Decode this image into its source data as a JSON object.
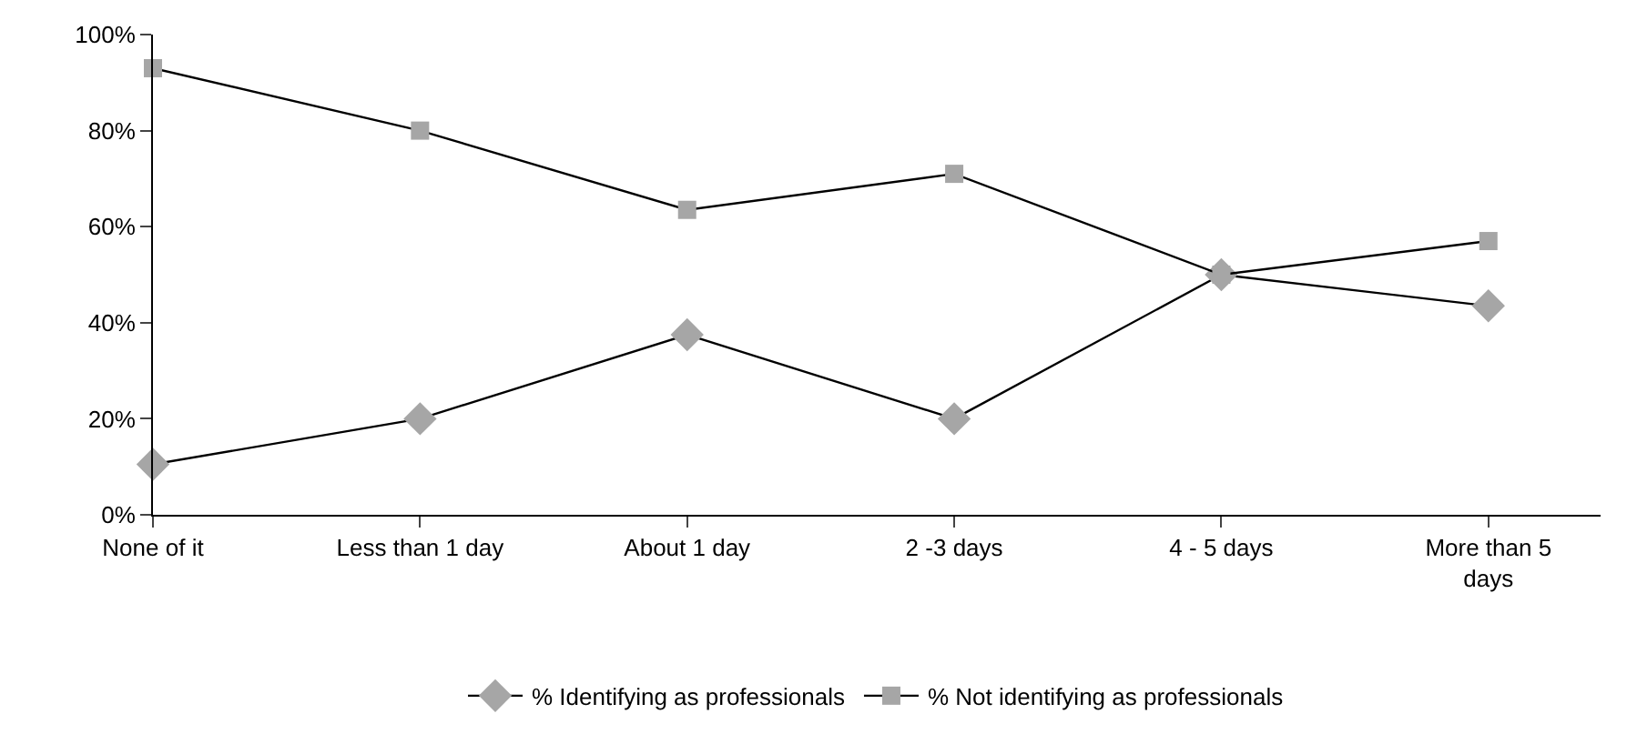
{
  "chart_data": {
    "type": "line",
    "categories": [
      "None of it",
      "Less than 1 day",
      "About 1 day",
      "2 -3 days",
      "4 - 5 days",
      "More than 5 days"
    ],
    "series": [
      {
        "name": "% Identifying as professionals",
        "color": "#a6a6a6",
        "marker": "diamond",
        "values": [
          10.5,
          20,
          37.5,
          20,
          50,
          43.5
        ]
      },
      {
        "name": "% Not identifying as professionals",
        "color": "#a6a6a6",
        "marker": "square",
        "values": [
          93,
          80,
          63.5,
          71,
          50,
          57
        ]
      }
    ],
    "ylim": [
      0,
      100
    ],
    "yticks": [
      {
        "value": 0,
        "label": "0%"
      },
      {
        "value": 20,
        "label": "20%"
      },
      {
        "value": 40,
        "label": "40%"
      },
      {
        "value": 60,
        "label": "60%"
      },
      {
        "value": 80,
        "label": "80%"
      },
      {
        "value": 100,
        "label": "100%"
      }
    ],
    "legend": "bottom",
    "line_style": "solid"
  }
}
